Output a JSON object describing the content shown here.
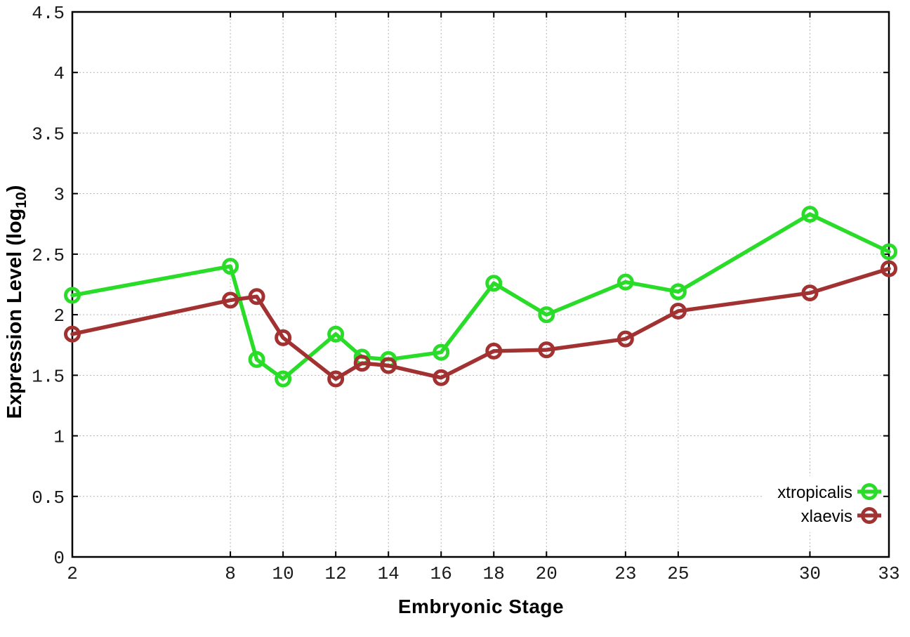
{
  "chart_data": {
    "type": "line",
    "title": "",
    "xlabel": "Embryonic Stage",
    "ylabel": "Expression Level (log10)",
    "ylabel_parts": {
      "main": "Expression Level (log",
      "sub": "10",
      "end": ")"
    },
    "x": [
      2,
      8,
      9,
      10,
      12,
      13,
      14,
      16,
      18,
      20,
      23,
      25,
      30,
      33
    ],
    "series": [
      {
        "name": "xtropicalis",
        "color": "#28dc28",
        "values": [
          2.16,
          2.4,
          1.63,
          1.47,
          1.84,
          1.65,
          1.63,
          1.69,
          2.26,
          2.0,
          2.27,
          2.19,
          2.83,
          2.52
        ]
      },
      {
        "name": "xlaevis",
        "color": "#a23232",
        "values": [
          1.84,
          2.12,
          2.15,
          1.81,
          1.47,
          1.6,
          1.58,
          1.48,
          1.7,
          1.71,
          1.8,
          2.03,
          2.18,
          2.38
        ]
      }
    ],
    "xlim": [
      2,
      33
    ],
    "ylim": [
      0,
      4.5
    ],
    "xtick_values": [
      2,
      8,
      10,
      12,
      14,
      16,
      18,
      20,
      23,
      25,
      30,
      33
    ],
    "xtick_labels": [
      "2",
      "8",
      "10",
      "12",
      "14",
      "16",
      "18",
      "20",
      "23",
      "25",
      "30",
      "33"
    ],
    "ytick_values": [
      0,
      0.5,
      1,
      1.5,
      2,
      2.5,
      3,
      3.5,
      4,
      4.5
    ],
    "ytick_labels": [
      "0",
      "0.5",
      "1",
      "1.5",
      "2",
      "2.5",
      "3",
      "3.5",
      "4",
      "4.5"
    ],
    "grid": true,
    "legend_position": "bottom-right",
    "legend_labels": [
      "xtropicalis",
      "xlaevis"
    ]
  },
  "styles": {
    "background_color": "#ffffff",
    "axis_color": "#000000",
    "grid_color": "#b3b3b3",
    "tick_label_color": "#1a1a1a",
    "accent_green": "#28dc28",
    "accent_dark_red": "#a23232"
  }
}
